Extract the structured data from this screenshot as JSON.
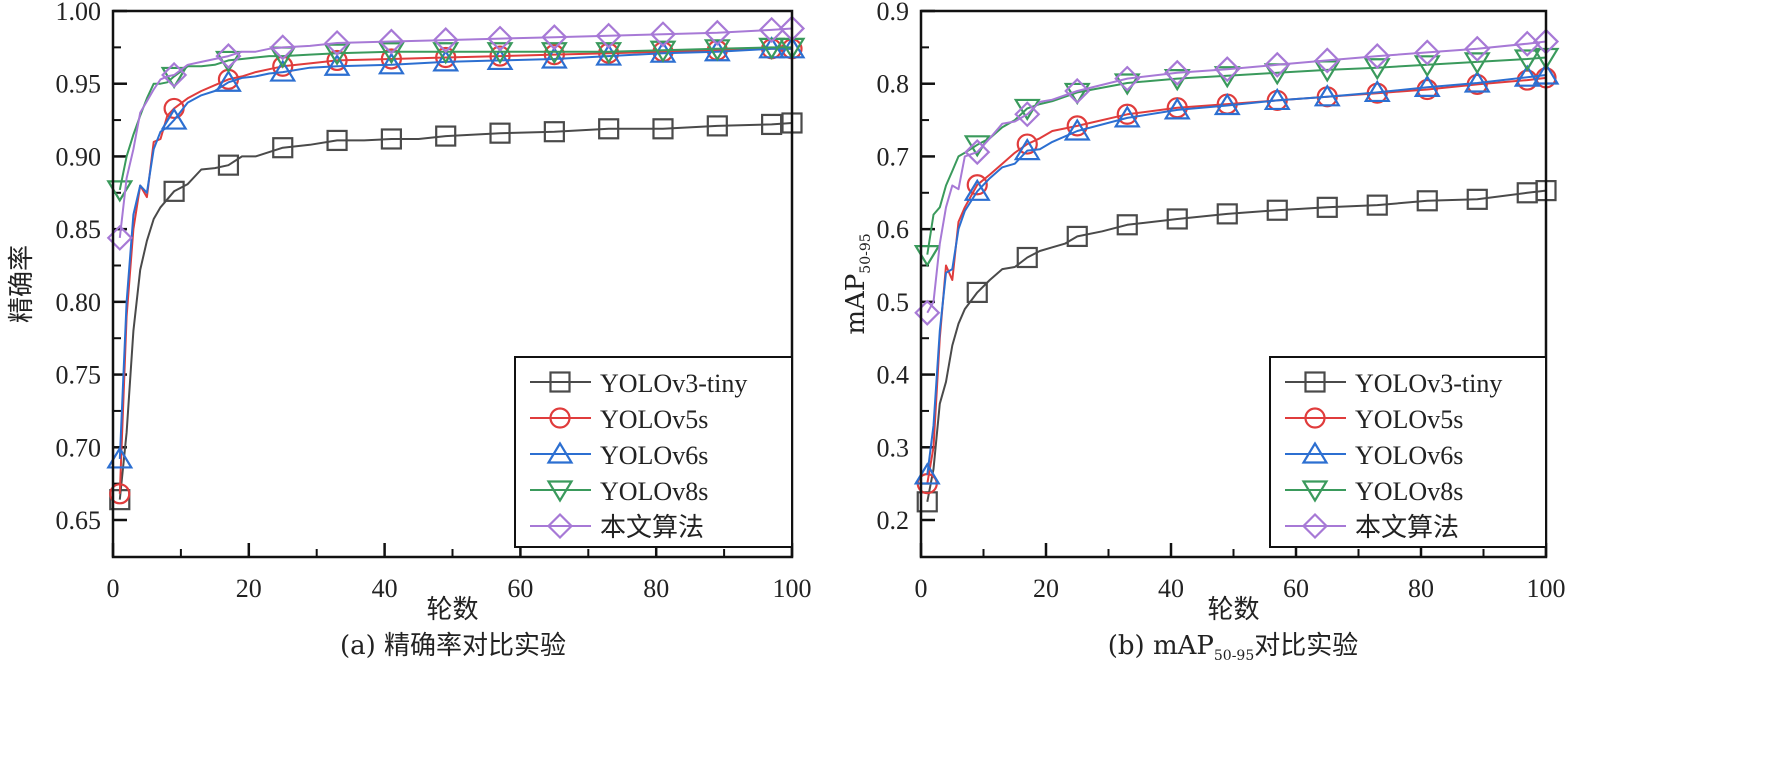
{
  "figure": {
    "captions": [
      "(a) 精确率对比实验",
      "(b) mAP",
      "50-95",
      "对比实验"
    ]
  },
  "chart_data": [
    {
      "id": "a",
      "type": "line",
      "title": "",
      "caption": "(a) 精确率对比实验",
      "xlabel": "轮数",
      "ylabel": "精确率",
      "xlim": [
        0,
        100
      ],
      "ylim": [
        0.625,
        1.0
      ],
      "xticks": [
        0,
        20,
        40,
        60,
        80,
        100
      ],
      "xtick_labels": [
        "0",
        "20",
        "40",
        "60",
        "80",
        "100"
      ],
      "xminor": [
        10,
        30,
        50,
        70,
        90
      ],
      "yticks": [
        0.65,
        0.7,
        0.75,
        0.8,
        0.85,
        0.9,
        0.95,
        1.0
      ],
      "ytick_labels": [
        "0.65",
        "0.70",
        "0.75",
        "0.80",
        "0.85",
        "0.90",
        "0.95",
        "1.00"
      ],
      "yminor": [
        0.675,
        0.725,
        0.775,
        0.825,
        0.875,
        0.925,
        0.975
      ],
      "grid": false,
      "legend_position": "bottom-right",
      "marker_x": [
        1,
        9,
        17,
        25,
        33,
        41,
        49,
        57,
        65,
        73,
        81,
        89,
        97,
        100
      ],
      "series": [
        {
          "name": "YOLOv3-tiny",
          "color": "#4a4a4a",
          "marker": "square",
          "x": [
            1,
            2,
            3,
            4,
            5,
            6,
            7,
            9,
            11,
            13,
            15,
            17,
            19,
            21,
            23,
            25,
            29,
            33,
            37,
            41,
            45,
            49,
            57,
            65,
            73,
            81,
            89,
            97,
            100
          ],
          "y": [
            0.664,
            0.71,
            0.78,
            0.822,
            0.842,
            0.857,
            0.865,
            0.876,
            0.881,
            0.891,
            0.892,
            0.894,
            0.9,
            0.9,
            0.903,
            0.906,
            0.908,
            0.911,
            0.911,
            0.912,
            0.912,
            0.914,
            0.916,
            0.917,
            0.919,
            0.919,
            0.921,
            0.922,
            0.923
          ]
        },
        {
          "name": "YOLOv5s",
          "color": "#e03c3c",
          "marker": "circle",
          "x": [
            1,
            2,
            3,
            4,
            5,
            6,
            7,
            8,
            9,
            11,
            13,
            15,
            17,
            19,
            21,
            23,
            25,
            29,
            33,
            41,
            49,
            57,
            65,
            73,
            81,
            89,
            97,
            100
          ],
          "y": [
            0.668,
            0.79,
            0.85,
            0.88,
            0.872,
            0.91,
            0.912,
            0.928,
            0.933,
            0.94,
            0.945,
            0.949,
            0.953,
            0.955,
            0.958,
            0.96,
            0.962,
            0.964,
            0.966,
            0.967,
            0.968,
            0.969,
            0.97,
            0.971,
            0.972,
            0.973,
            0.974,
            0.974
          ]
        },
        {
          "name": "YOLOv6s",
          "color": "#2c6fd1",
          "marker": "triangle-up",
          "x": [
            1,
            2,
            3,
            4,
            5,
            6,
            7,
            8,
            9,
            11,
            13,
            15,
            17,
            19,
            21,
            23,
            25,
            29,
            33,
            41,
            49,
            57,
            65,
            73,
            81,
            89,
            97,
            100
          ],
          "y": [
            0.692,
            0.8,
            0.86,
            0.88,
            0.875,
            0.905,
            0.917,
            0.92,
            0.925,
            0.937,
            0.942,
            0.945,
            0.951,
            0.954,
            0.955,
            0.957,
            0.958,
            0.961,
            0.962,
            0.963,
            0.965,
            0.966,
            0.967,
            0.969,
            0.971,
            0.972,
            0.974,
            0.974
          ]
        },
        {
          "name": "YOLOv8s",
          "color": "#3a9a5c",
          "marker": "triangle-down",
          "x": [
            1,
            2,
            3,
            4,
            5,
            6,
            7,
            8,
            9,
            11,
            13,
            15,
            17,
            19,
            21,
            23,
            25,
            29,
            33,
            41,
            49,
            57,
            65,
            73,
            81,
            89,
            97,
            100
          ],
          "y": [
            0.877,
            0.9,
            0.915,
            0.928,
            0.94,
            0.95,
            0.95,
            0.951,
            0.955,
            0.962,
            0.962,
            0.963,
            0.966,
            0.967,
            0.968,
            0.969,
            0.969,
            0.97,
            0.971,
            0.972,
            0.972,
            0.972,
            0.972,
            0.972,
            0.973,
            0.974,
            0.975,
            0.975
          ]
        },
        {
          "name": "本文算法",
          "color": "#a779d6",
          "marker": "diamond",
          "x": [
            1,
            2,
            3,
            4,
            5,
            6,
            7,
            8,
            9,
            11,
            13,
            15,
            17,
            19,
            21,
            23,
            25,
            29,
            33,
            41,
            49,
            57,
            65,
            73,
            81,
            89,
            97,
            100
          ],
          "y": [
            0.844,
            0.885,
            0.905,
            0.93,
            0.938,
            0.946,
            0.953,
            0.955,
            0.956,
            0.963,
            0.965,
            0.967,
            0.969,
            0.972,
            0.972,
            0.974,
            0.975,
            0.976,
            0.978,
            0.979,
            0.98,
            0.981,
            0.982,
            0.983,
            0.984,
            0.985,
            0.987,
            0.988
          ]
        }
      ]
    },
    {
      "id": "b",
      "type": "line",
      "title": "",
      "caption": "(b) mAP50-95对比实验",
      "xlabel": "轮数",
      "ylabel": "mAP",
      "ylabel_sub": "50-95",
      "xlim": [
        0,
        100
      ],
      "ylim": [
        0.15,
        0.9
      ],
      "xticks": [
        0,
        20,
        40,
        60,
        80,
        100
      ],
      "xtick_labels": [
        "0",
        "20",
        "40",
        "60",
        "80",
        "100"
      ],
      "xminor": [
        10,
        30,
        50,
        70,
        90
      ],
      "yticks": [
        0.2,
        0.3,
        0.4,
        0.5,
        0.6,
        0.7,
        0.8,
        0.9
      ],
      "ytick_labels": [
        "0.2",
        "0.3",
        "0.4",
        "0.5",
        "0.6",
        "0.7",
        "0.8",
        "0.9"
      ],
      "yminor": [
        0.25,
        0.35,
        0.45,
        0.55,
        0.65,
        0.75,
        0.85
      ],
      "grid": false,
      "legend_position": "bottom-right",
      "marker_x": [
        1,
        9,
        17,
        25,
        33,
        41,
        49,
        57,
        65,
        73,
        81,
        89,
        97,
        100
      ],
      "series": [
        {
          "name": "YOLOv3-tiny",
          "color": "#4a4a4a",
          "marker": "square",
          "x": [
            1,
            2,
            3,
            4,
            5,
            6,
            7,
            9,
            11,
            13,
            15,
            17,
            19,
            21,
            23,
            25,
            29,
            33,
            41,
            49,
            57,
            65,
            73,
            81,
            89,
            97,
            100
          ],
          "y": [
            0.225,
            0.27,
            0.36,
            0.39,
            0.44,
            0.47,
            0.49,
            0.513,
            0.53,
            0.545,
            0.548,
            0.561,
            0.57,
            0.575,
            0.58,
            0.59,
            0.597,
            0.606,
            0.614,
            0.621,
            0.626,
            0.63,
            0.633,
            0.639,
            0.641,
            0.65,
            0.653
          ]
        },
        {
          "name": "YOLOv5s",
          "color": "#e03c3c",
          "marker": "circle",
          "x": [
            1,
            2,
            3,
            4,
            5,
            6,
            7,
            9,
            11,
            13,
            15,
            17,
            19,
            21,
            25,
            33,
            41,
            49,
            57,
            65,
            73,
            81,
            89,
            97,
            100
          ],
          "y": [
            0.25,
            0.3,
            0.45,
            0.55,
            0.53,
            0.61,
            0.63,
            0.661,
            0.675,
            0.69,
            0.705,
            0.717,
            0.725,
            0.735,
            0.742,
            0.758,
            0.767,
            0.772,
            0.777,
            0.782,
            0.787,
            0.792,
            0.799,
            0.805,
            0.808
          ]
        },
        {
          "name": "YOLOv6s",
          "color": "#2c6fd1",
          "marker": "triangle-up",
          "x": [
            1,
            2,
            3,
            4,
            5,
            6,
            7,
            9,
            11,
            13,
            15,
            17,
            19,
            21,
            25,
            33,
            41,
            49,
            57,
            65,
            73,
            81,
            89,
            97,
            100
          ],
          "y": [
            0.262,
            0.33,
            0.46,
            0.54,
            0.545,
            0.6,
            0.625,
            0.652,
            0.67,
            0.685,
            0.69,
            0.708,
            0.71,
            0.72,
            0.735,
            0.753,
            0.764,
            0.77,
            0.777,
            0.782,
            0.788,
            0.795,
            0.801,
            0.809,
            0.812
          ]
        },
        {
          "name": "YOLOv8s",
          "color": "#3a9a5c",
          "marker": "triangle-down",
          "x": [
            1,
            2,
            3,
            4,
            5,
            6,
            7,
            9,
            11,
            13,
            15,
            17,
            19,
            21,
            25,
            33,
            41,
            49,
            57,
            65,
            73,
            81,
            89,
            97,
            100
          ],
          "y": [
            0.565,
            0.62,
            0.63,
            0.66,
            0.68,
            0.7,
            0.705,
            0.716,
            0.725,
            0.74,
            0.75,
            0.766,
            0.772,
            0.776,
            0.788,
            0.801,
            0.807,
            0.811,
            0.815,
            0.819,
            0.822,
            0.826,
            0.83,
            0.834,
            0.836
          ]
        },
        {
          "name": "本文算法",
          "color": "#a779d6",
          "marker": "diamond",
          "x": [
            1,
            2,
            3,
            4,
            5,
            6,
            7,
            9,
            11,
            13,
            15,
            17,
            19,
            21,
            25,
            33,
            41,
            49,
            57,
            65,
            73,
            81,
            89,
            97,
            100
          ],
          "y": [
            0.485,
            0.5,
            0.58,
            0.63,
            0.66,
            0.655,
            0.7,
            0.706,
            0.725,
            0.745,
            0.748,
            0.758,
            0.775,
            0.778,
            0.79,
            0.807,
            0.815,
            0.82,
            0.826,
            0.832,
            0.838,
            0.843,
            0.848,
            0.855,
            0.858
          ]
        }
      ]
    }
  ]
}
